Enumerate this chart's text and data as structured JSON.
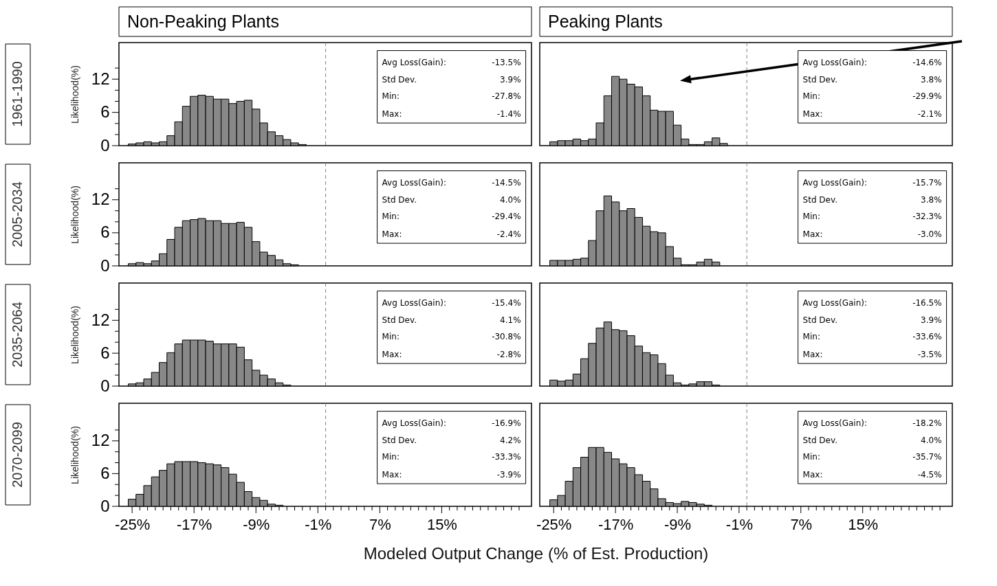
{
  "chart_data": [
    {
      "type": "histogram",
      "title": "Non-Peaking Plants",
      "subtitle": "1961-1990",
      "ylabel": "Likelihood(%)",
      "color": "#888888",
      "tick_labels": "y",
      "bins": [
        -25.5,
        -24.5,
        -23.5,
        -22.5,
        -21.5,
        -20.5,
        -19.5,
        -18.5,
        -17.5,
        -16.5,
        -15.5,
        -14.5,
        -13.5,
        -12.5,
        -11.5,
        -10.5,
        -9.5,
        -8.5,
        -7.5,
        -6.5,
        -5.5,
        -4.5,
        -3.5,
        -2.5
      ],
      "values": [
        0.3,
        0.5,
        0.7,
        0.5,
        0.7,
        1.8,
        4.3,
        7.1,
        8.9,
        9.1,
        8.9,
        8.4,
        8.4,
        7.6,
        8.0,
        8.2,
        6.6,
        4.1,
        2.5,
        1.8,
        1.1,
        0.5,
        0.2
      ],
      "xlim": [
        -26.7,
        26.6
      ],
      "ylim": [
        0,
        18.6
      ],
      "yticks": [
        0,
        {
          "value": 2,
          "label": null
        },
        {
          "value": 4,
          "label": null
        },
        6,
        {
          "value": 8,
          "label": null
        },
        {
          "value": 10,
          "label": null
        },
        12,
        {
          "value": 14,
          "label": null
        }
      ],
      "ref_lines": [
        {
          "axis": "x",
          "value": 0,
          "color": "#808080",
          "line_style": "dashed"
        }
      ],
      "annotations": [
        "Avg Loss(Gain):",
        "-13.5%",
        "Std Dev.",
        "3.9%",
        "Min:",
        "-27.8%",
        "Max:",
        "-1.4%"
      ]
    },
    {
      "type": "histogram",
      "title": "Peaking Plants",
      "color": "#888888",
      "tick_labels": false,
      "bins": [
        -25.5,
        -24.5,
        -23.5,
        -22.5,
        -21.5,
        -20.5,
        -19.5,
        -18.5,
        -17.5,
        -16.5,
        -15.5,
        -14.5,
        -13.5,
        -12.5,
        -11.5,
        -10.5,
        -9.5,
        -8.5,
        -7.5,
        -6.5,
        -5.5,
        -4.5,
        -3.5,
        -2.5
      ],
      "values": [
        0.7,
        0.9,
        0.9,
        1.2,
        0.9,
        1.2,
        4.1,
        9.0,
        12.5,
        12.0,
        11.1,
        10.6,
        9.0,
        6.4,
        6.2,
        6.2,
        3.7,
        1.2,
        0.2,
        0.2,
        0.7,
        1.4,
        0.4
      ],
      "xlim": [
        -26.8,
        26.6
      ],
      "ylim": [
        0,
        18.6
      ],
      "ref_lines": [
        {
          "axis": "x",
          "value": 0,
          "color": "#808080",
          "line_style": "dashed"
        }
      ],
      "annotations": [
        "Avg Loss(Gain):",
        "-14.6%",
        "Std Dev.",
        "3.8%",
        "Min:",
        "-29.9%",
        "Max:",
        "-2.1%"
      ]
    },
    {
      "type": "histogram",
      "subtitle": "2005-2034",
      "ylabel": "Likelihood(%)",
      "color": "#888888",
      "tick_labels": "y",
      "bins": [
        -25.5,
        -24.5,
        -23.5,
        -22.5,
        -21.5,
        -20.5,
        -19.5,
        -18.5,
        -17.5,
        -16.5,
        -15.5,
        -14.5,
        -13.5,
        -12.5,
        -11.5,
        -10.5,
        -9.5,
        -8.5,
        -7.5,
        -6.5,
        -5.5,
        -4.5,
        -3.5
      ],
      "values": [
        0.4,
        0.6,
        0.4,
        0.9,
        2.2,
        4.8,
        7.0,
        8.2,
        8.4,
        8.6,
        8.2,
        8.2,
        7.7,
        7.7,
        7.9,
        7.0,
        4.4,
        2.5,
        1.9,
        1.1,
        0.4,
        0.2
      ],
      "xlim": [
        -26.7,
        26.6
      ],
      "ylim": [
        0,
        18.7
      ],
      "yticks": [
        0,
        {
          "value": 2,
          "label": null
        },
        {
          "value": 4,
          "label": null
        },
        6,
        {
          "value": 8,
          "label": null
        },
        {
          "value": 10,
          "label": null
        },
        12,
        {
          "value": 14,
          "label": null
        }
      ],
      "ref_lines": [
        {
          "axis": "x",
          "value": 0,
          "color": "#808080",
          "line_style": "dashed"
        }
      ],
      "annotations": [
        "Avg Loss(Gain):",
        "-14.5%",
        "Std Dev.",
        "4.0%",
        "Min:",
        "-29.4%",
        "Max:",
        "-2.4%"
      ]
    },
    {
      "type": "histogram",
      "color": "#888888",
      "tick_labels": false,
      "bins": [
        -25.5,
        -24.5,
        -23.5,
        -22.5,
        -21.5,
        -20.5,
        -19.5,
        -18.5,
        -17.5,
        -16.5,
        -15.5,
        -14.5,
        -13.5,
        -12.5,
        -11.5,
        -10.5,
        -9.5,
        -8.5,
        -7.5,
        -6.5,
        -5.5,
        -4.5,
        -3.5
      ],
      "values": [
        1.0,
        1.0,
        1.0,
        1.2,
        1.4,
        4.6,
        10.0,
        12.7,
        11.6,
        10.0,
        10.4,
        8.8,
        7.2,
        6.2,
        6.0,
        3.5,
        1.4,
        0.2,
        0.2,
        0.7,
        1.2,
        0.7
      ],
      "xlim": [
        -26.8,
        26.6
      ],
      "ylim": [
        0,
        18.7
      ],
      "ref_lines": [
        {
          "axis": "x",
          "value": 0,
          "color": "#808080",
          "line_style": "dashed"
        }
      ],
      "annotations": [
        "Avg Loss(Gain):",
        "-15.7%",
        "Std Dev.",
        "3.8%",
        "Min:",
        "-32.3%",
        "Max:",
        "-3.0%"
      ]
    },
    {
      "type": "histogram",
      "subtitle": "2035-2064",
      "ylabel": "Likelihood(%)",
      "color": "#888888",
      "tick_labels": "y",
      "bins": [
        -25.5,
        -24.5,
        -23.5,
        -22.5,
        -21.5,
        -20.5,
        -19.5,
        -18.5,
        -17.5,
        -16.5,
        -15.5,
        -14.5,
        -13.5,
        -12.5,
        -11.5,
        -10.5,
        -9.5,
        -8.5,
        -7.5,
        -6.5,
        -5.5,
        -4.5
      ],
      "values": [
        0.4,
        0.6,
        1.3,
        2.5,
        4.3,
        6.1,
        7.7,
        8.4,
        8.4,
        8.4,
        8.2,
        7.7,
        7.7,
        7.7,
        7.1,
        4.8,
        2.9,
        2.0,
        1.3,
        0.6,
        0.2
      ],
      "xlim": [
        -26.7,
        26.6
      ],
      "ylim": [
        0,
        18.8
      ],
      "yticks": [
        0,
        {
          "value": 2,
          "label": null
        },
        {
          "value": 4,
          "label": null
        },
        6,
        {
          "value": 8,
          "label": null
        },
        {
          "value": 10,
          "label": null
        },
        12,
        {
          "value": 14,
          "label": null
        }
      ],
      "ref_lines": [
        {
          "axis": "x",
          "value": 0,
          "color": "#808080",
          "line_style": "dashed"
        }
      ],
      "annotations": [
        "Avg Loss(Gain):",
        "-15.4%",
        "Std Dev.",
        "4.1%",
        "Min:",
        "-30.8%",
        "Max:",
        "-2.8%"
      ]
    },
    {
      "type": "histogram",
      "color": "#888888",
      "tick_labels": false,
      "bins": [
        -25.5,
        -24.5,
        -23.5,
        -22.5,
        -21.5,
        -20.5,
        -19.5,
        -18.5,
        -17.5,
        -16.5,
        -15.5,
        -14.5,
        -13.5,
        -12.5,
        -11.5,
        -10.5,
        -9.5,
        -8.5,
        -7.5,
        -6.5,
        -5.5,
        -4.5,
        -3.5
      ],
      "values": [
        1.1,
        0.9,
        1.1,
        2.2,
        5.0,
        7.8,
        10.6,
        11.7,
        10.3,
        10.1,
        9.2,
        7.3,
        6.1,
        5.7,
        4.1,
        2.0,
        0.6,
        0.2,
        0.4,
        0.8,
        0.8,
        0.2
      ],
      "xlim": [
        -26.8,
        26.6
      ],
      "ylim": [
        0,
        18.8
      ],
      "ref_lines": [
        {
          "axis": "x",
          "value": 0,
          "color": "#808080",
          "line_style": "dashed"
        }
      ],
      "annotations": [
        "Avg Loss(Gain):",
        "-16.5%",
        "Std Dev.",
        "3.9%",
        "Min:",
        "-33.6%",
        "Max:",
        "-3.5%"
      ]
    },
    {
      "type": "histogram",
      "subtitle": "2070-2099",
      "ylabel": "Likelihood(%)",
      "xlabel": "Modeled Output Change (% of Est. Production)",
      "color": "#888888",
      "bins": [
        -25.5,
        -24.5,
        -23.5,
        -22.5,
        -21.5,
        -20.5,
        -19.5,
        -18.5,
        -17.5,
        -16.5,
        -15.5,
        -14.5,
        -13.5,
        -12.5,
        -11.5,
        -10.5,
        -9.5,
        -8.5,
        -7.5,
        -6.5,
        -5.5
      ],
      "values": [
        1.3,
        2.2,
        3.8,
        5.4,
        6.6,
        7.8,
        8.2,
        8.2,
        8.2,
        8.0,
        7.8,
        7.6,
        7.1,
        5.9,
        4.4,
        2.7,
        1.6,
        1.1,
        0.4,
        0.2
      ],
      "xlim": [
        -26.7,
        26.6
      ],
      "ylim": [
        0,
        18.9
      ],
      "xticks": [
        {
          "value": -25,
          "label": "-25%"
        },
        {
          "value": -24,
          "label": null
        },
        {
          "value": -23,
          "label": null
        },
        {
          "value": -22,
          "label": null
        },
        {
          "value": -21,
          "label": null
        },
        {
          "value": -20,
          "label": null
        },
        {
          "value": -19,
          "label": null
        },
        {
          "value": -18,
          "label": null
        },
        {
          "value": -17,
          "label": "-17%"
        },
        {
          "value": -16,
          "label": null
        },
        {
          "value": -15,
          "label": null
        },
        {
          "value": -14,
          "label": null
        },
        {
          "value": -13,
          "label": null
        },
        {
          "value": -12,
          "label": null
        },
        {
          "value": -11,
          "label": null
        },
        {
          "value": -10,
          "label": null
        },
        {
          "value": -9,
          "label": "-9%"
        },
        {
          "value": -8,
          "label": null
        },
        {
          "value": -7,
          "label": null
        },
        {
          "value": -6,
          "label": null
        },
        {
          "value": -5,
          "label": null
        },
        {
          "value": -4,
          "label": null
        },
        {
          "value": -3,
          "label": null
        },
        {
          "value": -2,
          "label": null
        },
        {
          "value": -1,
          "label": "-1%"
        },
        {
          "value": 0,
          "label": null
        },
        {
          "value": 1,
          "label": null
        },
        {
          "value": 2,
          "label": null
        },
        {
          "value": 3,
          "label": null
        },
        {
          "value": 4,
          "label": null
        },
        {
          "value": 5,
          "label": null
        },
        {
          "value": 6,
          "label": null
        },
        {
          "value": 7,
          "label": "7%"
        },
        {
          "value": 8,
          "label": null
        },
        {
          "value": 9,
          "label": null
        },
        {
          "value": 10,
          "label": null
        },
        {
          "value": 11,
          "label": null
        },
        {
          "value": 12,
          "label": null
        },
        {
          "value": 13,
          "label": null
        },
        {
          "value": 14,
          "label": null
        },
        {
          "value": 15,
          "label": "15%"
        },
        {
          "value": 16,
          "label": null
        },
        {
          "value": 17,
          "label": null
        },
        {
          "value": 18,
          "label": null
        },
        {
          "value": 19,
          "label": null
        },
        {
          "value": 20,
          "label": null
        },
        {
          "value": 21,
          "label": null
        },
        {
          "value": 22,
          "label": null
        },
        {
          "value": 23,
          "label": null
        },
        {
          "value": 24,
          "label": null
        },
        {
          "value": 25,
          "label": null
        }
      ],
      "yticks": [
        0,
        {
          "value": 2,
          "label": null
        },
        {
          "value": 4,
          "label": null
        },
        6,
        {
          "value": 8,
          "label": null
        },
        {
          "value": 10,
          "label": null
        },
        12,
        {
          "value": 14,
          "label": null
        }
      ],
      "ref_lines": [
        {
          "axis": "x",
          "value": 0,
          "color": "#808080",
          "line_style": "dashed"
        }
      ],
      "annotations": [
        "Avg Loss(Gain):",
        "-16.9%",
        "Std Dev.",
        "4.2%",
        "Min:",
        "-33.3%",
        "Max:",
        "-3.9%"
      ]
    },
    {
      "type": "histogram",
      "color": "#888888",
      "tick_labels": "x",
      "bins": [
        -25.5,
        -24.5,
        -23.5,
        -22.5,
        -21.5,
        -20.5,
        -19.5,
        -18.5,
        -17.5,
        -16.5,
        -15.5,
        -14.5,
        -13.5,
        -12.5,
        -11.5,
        -10.5,
        -9.5,
        -8.5,
        -7.5,
        -6.5,
        -5.5,
        -4.5
      ],
      "values": [
        1.2,
        2.0,
        4.6,
        7.1,
        9.0,
        10.8,
        10.8,
        9.9,
        8.7,
        7.8,
        7.1,
        5.8,
        4.6,
        3.2,
        1.4,
        0.7,
        0.5,
        0.9,
        0.7,
        0.4,
        0.2
      ],
      "xlim": [
        -26.8,
        26.6
      ],
      "ylim": [
        0,
        18.9
      ],
      "xticks": [
        {
          "value": -25,
          "label": "-25%"
        },
        {
          "value": -24,
          "label": null
        },
        {
          "value": -23,
          "label": null
        },
        {
          "value": -22,
          "label": null
        },
        {
          "value": -21,
          "label": null
        },
        {
          "value": -20,
          "label": null
        },
        {
          "value": -19,
          "label": null
        },
        {
          "value": -18,
          "label": null
        },
        {
          "value": -17,
          "label": "-17%"
        },
        {
          "value": -16,
          "label": null
        },
        {
          "value": -15,
          "label": null
        },
        {
          "value": -14,
          "label": null
        },
        {
          "value": -13,
          "label": null
        },
        {
          "value": -12,
          "label": null
        },
        {
          "value": -11,
          "label": null
        },
        {
          "value": -10,
          "label": null
        },
        {
          "value": -9,
          "label": "-9%"
        },
        {
          "value": -8,
          "label": null
        },
        {
          "value": -7,
          "label": null
        },
        {
          "value": -6,
          "label": null
        },
        {
          "value": -5,
          "label": null
        },
        {
          "value": -4,
          "label": null
        },
        {
          "value": -3,
          "label": null
        },
        {
          "value": -2,
          "label": null
        },
        {
          "value": -1,
          "label": "-1%"
        },
        {
          "value": 0,
          "label": null
        },
        {
          "value": 1,
          "label": null
        },
        {
          "value": 2,
          "label": null
        },
        {
          "value": 3,
          "label": null
        },
        {
          "value": 4,
          "label": null
        },
        {
          "value": 5,
          "label": null
        },
        {
          "value": 6,
          "label": null
        },
        {
          "value": 7,
          "label": "7%"
        },
        {
          "value": 8,
          "label": null
        },
        {
          "value": 9,
          "label": null
        },
        {
          "value": 10,
          "label": null
        },
        {
          "value": 11,
          "label": null
        },
        {
          "value": 12,
          "label": null
        },
        {
          "value": 13,
          "label": null
        },
        {
          "value": 14,
          "label": null
        },
        {
          "value": 15,
          "label": "15%"
        },
        {
          "value": 16,
          "label": null
        },
        {
          "value": 17,
          "label": null
        },
        {
          "value": 18,
          "label": null
        },
        {
          "value": 19,
          "label": null
        },
        {
          "value": 20,
          "label": null
        },
        {
          "value": 21,
          "label": null
        },
        {
          "value": 22,
          "label": null
        },
        {
          "value": 23,
          "label": null
        },
        {
          "value": 24,
          "label": null
        },
        {
          "value": 25,
          "label": null
        }
      ],
      "ref_lines": [
        {
          "axis": "x",
          "value": 0,
          "color": "#808080",
          "line_style": "dashed"
        }
      ],
      "annotations": [
        "Avg Loss(Gain):",
        "-18.2%",
        "Std Dev.",
        "4.0%",
        "Min:",
        "-35.7%",
        "Max:",
        "-4.5%"
      ]
    }
  ]
}
